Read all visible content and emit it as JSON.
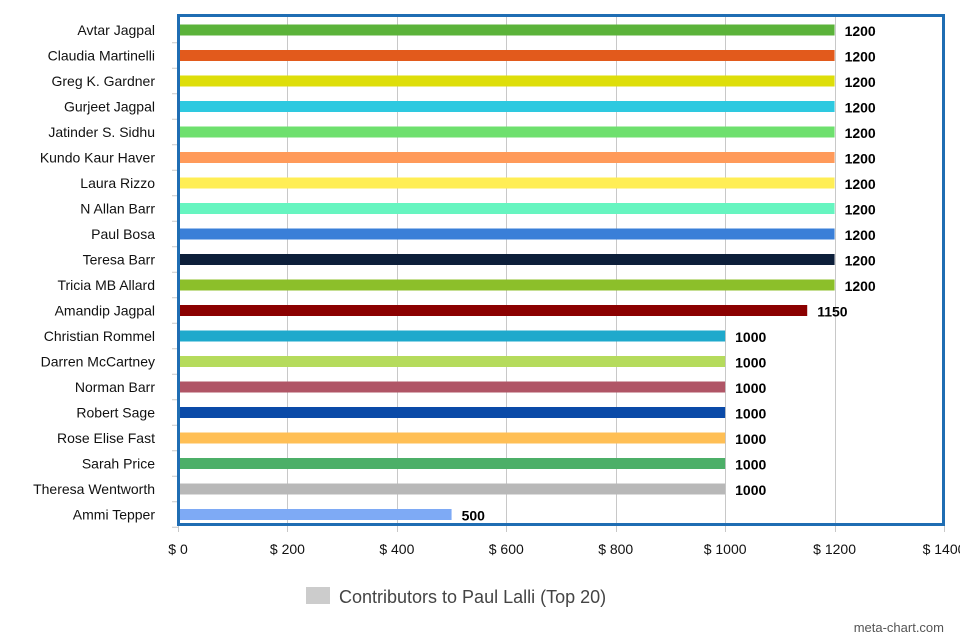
{
  "chart_data": {
    "type": "bar",
    "orientation": "horizontal",
    "categories": [
      "Avtar Jagpal",
      "Claudia Martinelli",
      "Greg K. Gardner",
      "Gurjeet Jagpal",
      "Jatinder S. Sidhu",
      "Kundo Kaur Haver",
      "Laura Rizzo",
      "N Allan Barr",
      "Paul Bosa",
      "Teresa Barr",
      "Tricia MB Allard",
      "Amandip Jagpal",
      "Christian Rommel",
      "Darren McCartney",
      "Norman Barr",
      "Robert Sage",
      "Rose Elise Fast",
      "Sarah Price",
      "Theresa Wentworth",
      "Ammi Tepper"
    ],
    "values": [
      1200,
      1200,
      1200,
      1200,
      1200,
      1200,
      1200,
      1200,
      1200,
      1200,
      1200,
      1150,
      1000,
      1000,
      1000,
      1000,
      1000,
      1000,
      1000,
      500
    ],
    "value_labels": [
      "1200",
      "1200",
      "1200",
      "1200",
      "1200",
      "1200",
      "1200",
      "1200",
      "1200",
      "1200",
      "1200",
      "1150",
      "1000",
      "1000",
      "1000",
      "1000",
      "1000",
      "1000",
      "1000",
      "500"
    ],
    "bar_colors": [
      "#5bb33a",
      "#e25a1c",
      "#dede0a",
      "#2ec9e0",
      "#6ee06e",
      "#ff9a5a",
      "#ffee55",
      "#66f5c0",
      "#3a7fd8",
      "#0d1f3a",
      "#8cbf2a",
      "#8b0000",
      "#1ea9cc",
      "#b5db5c",
      "#b05566",
      "#0a4aa8",
      "#ffbf55",
      "#4caf68",
      "#b8b8b8",
      "#7eaaf5"
    ],
    "xlim": [
      0,
      1400
    ],
    "x_ticks": [
      0,
      200,
      400,
      600,
      800,
      1000,
      1200,
      1400
    ],
    "x_tick_labels": [
      "$ 0",
      "$ 200",
      "$ 400",
      "$ 600",
      "$ 800",
      "$ 1000",
      "$ 1200",
      "$ 1400"
    ],
    "grid": true,
    "legend": {
      "label": "Contributors to Paul Lalli (Top 20)",
      "color": "#cccccc",
      "position": "bottom-center"
    },
    "frame_color": "#1f6db3",
    "credit": "meta-chart.com"
  }
}
